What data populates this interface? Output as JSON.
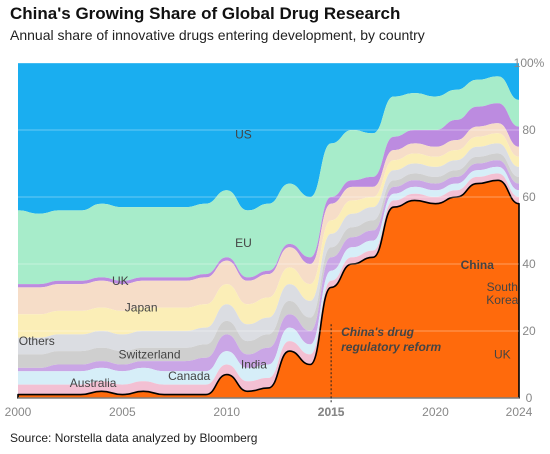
{
  "header": {
    "title": "China's Growing Share of Global Drug Research",
    "subtitle": "Annual share of innovative drugs entering development, by country"
  },
  "footer": {
    "source": "Source: Norstella data analyzed by Bloomberg"
  },
  "colors": {
    "US": "#1aaef0",
    "EU": "#a7ecca",
    "UK": "#f6ddc8",
    "Japan": "#fbeeb7",
    "Others": "#dbdde2",
    "Switzerland": "#cfcfcf",
    "India": "#caa6e6",
    "Canada": "#d6eef8",
    "Australia": "#f3c0d3",
    "South Korea": "#bc8be0",
    "China": "#ff6a0c",
    "outline": "#000000",
    "gridline": "#ffffff",
    "axis_text": "#888888"
  },
  "chart_data": {
    "type": "area",
    "stacked": true,
    "stack_order_bottom_to_top": [
      "China",
      "Australia",
      "Canada",
      "India",
      "Switzerland",
      "Others",
      "Japan",
      "UK",
      "South Korea",
      "EU",
      "US"
    ],
    "x": [
      2000,
      2001,
      2002,
      2003,
      2004,
      2005,
      2006,
      2007,
      2008,
      2009,
      2010,
      2011,
      2012,
      2013,
      2014,
      2015,
      2016,
      2017,
      2018,
      2019,
      2020,
      2021,
      2022,
      2023,
      2024
    ],
    "xticks": [
      "2000",
      "2005",
      "2010",
      "2015",
      "2020",
      "2024"
    ],
    "xlim": [
      2000,
      2024
    ],
    "ylim": [
      0,
      100
    ],
    "yticks": [
      "0",
      "20",
      "40",
      "60",
      "80",
      "100%"
    ],
    "series": [
      {
        "name": "China",
        "values": [
          1,
          1,
          1,
          1,
          2,
          1,
          2,
          1,
          1,
          1,
          7,
          2,
          3,
          14,
          10,
          33,
          40,
          42,
          57,
          59,
          58,
          60,
          64,
          65,
          58
        ]
      },
      {
        "name": "Australia",
        "values": [
          3,
          3,
          3,
          3,
          3,
          3,
          3,
          3,
          3,
          3,
          3,
          3,
          3,
          3,
          3,
          2,
          2,
          2,
          2,
          2,
          2,
          2,
          2,
          2,
          2
        ]
      },
      {
        "name": "Canada",
        "values": [
          4,
          4,
          4,
          4,
          4,
          4,
          4,
          4,
          4,
          4,
          4,
          4,
          4,
          4,
          3,
          3,
          3,
          3,
          2,
          2,
          2,
          2,
          2,
          2,
          2
        ]
      },
      {
        "name": "India",
        "values": [
          1,
          1,
          2,
          2,
          2,
          2,
          2,
          3,
          3,
          4,
          5,
          4,
          5,
          4,
          4,
          4,
          3,
          3,
          2,
          2,
          2,
          2,
          2,
          2,
          2
        ]
      },
      {
        "name": "Switzerland",
        "values": [
          4,
          4,
          4,
          4,
          4,
          4,
          4,
          4,
          4,
          4,
          4,
          4,
          4,
          4,
          4,
          3,
          3,
          3,
          2,
          2,
          2,
          2,
          2,
          2,
          2
        ]
      },
      {
        "name": "Others",
        "values": [
          5,
          5,
          5,
          5,
          5,
          5,
          5,
          5,
          5,
          5,
          5,
          5,
          5,
          5,
          5,
          4,
          4,
          4,
          3,
          3,
          3,
          3,
          3,
          3,
          3
        ]
      },
      {
        "name": "Japan",
        "values": [
          7,
          7,
          7,
          7,
          7,
          7,
          7,
          7,
          7,
          7,
          6,
          6,
          6,
          5,
          5,
          4,
          4,
          3,
          3,
          3,
          3,
          3,
          3,
          3,
          3
        ]
      },
      {
        "name": "UK",
        "values": [
          8,
          8,
          8,
          8,
          8,
          8,
          8,
          8,
          8,
          8,
          7,
          7,
          7,
          6,
          6,
          5,
          4,
          3,
          3,
          3,
          3,
          3,
          3,
          3,
          3
        ]
      },
      {
        "name": "South Korea",
        "values": [
          1,
          1,
          1,
          1,
          1,
          1,
          1,
          1,
          1,
          1,
          1,
          1,
          1,
          1,
          2,
          2,
          2,
          3,
          4,
          4,
          5,
          6,
          6,
          6,
          6
        ]
      },
      {
        "name": "EU",
        "values": [
          22,
          21,
          21,
          21,
          22,
          22,
          21,
          21,
          21,
          21,
          20,
          20,
          20,
          18,
          18,
          16,
          15,
          13,
          12,
          11,
          10,
          9,
          8,
          8,
          8
        ]
      },
      {
        "name": "US",
        "values": [
          44,
          45,
          44,
          44,
          42,
          43,
          43,
          43,
          43,
          42,
          38,
          44,
          42,
          36,
          40,
          24,
          20,
          21,
          10,
          9,
          10,
          8,
          5,
          4,
          11
        ]
      }
    ],
    "labels": [
      "US",
      "EU",
      "China",
      "UK",
      "Japan",
      "Others",
      "Switzerland",
      "India",
      "Canada",
      "Australia",
      "South Korea",
      "UK"
    ],
    "annotation": {
      "x": 2015,
      "label": "2015",
      "text_lines": [
        "China's drug",
        "regulatory reform"
      ]
    }
  }
}
